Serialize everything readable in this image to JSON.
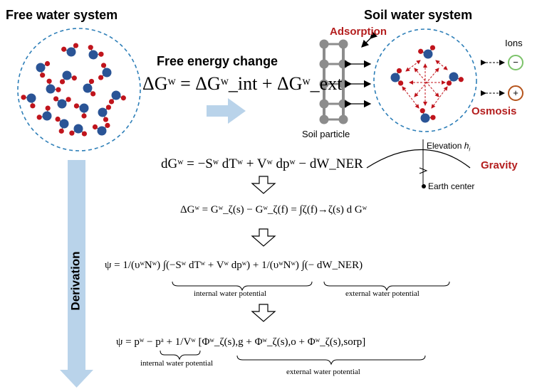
{
  "titles": {
    "free": "Free water system",
    "soil": "Soil water system",
    "free_energy": "Free energy change"
  },
  "labels": {
    "adsorption": "Adsorption",
    "ions": "Ions",
    "osmosis": "Osmosis",
    "soil_particle": "Soil particle",
    "elevation": "Elevation",
    "elevation_sub": "i",
    "elevation_symbol": "h",
    "gravity": "Gravity",
    "earth_center": "Earth center",
    "derivation": "Derivation",
    "ion_negative": "−",
    "ion_positive": "+"
  },
  "equations": {
    "delta_g": "ΔGʷ = ΔGʷ_int + ΔGʷ_ext",
    "dg": "dGʷ = −Sʷ dTʷ + Vʷ dpʷ − dW_NER",
    "integral": "ΔGʷ = Gʷ_ζ(s) − Gʷ_ζ(f) = ∫ζ(f)→ζ(s) d Gʷ",
    "psi_1": "ψ = 1/(υʷNʷ) ∫(−Sʷ dTʷ + Vʷ dpʷ) + 1/(υʷNʷ) ∫(− dW_NER)",
    "psi_2": "ψ = pʷ − pᵃ + 1/Vʷ [Φʷ_ζ(s),g + Φʷ_ζ(s),o + Φʷ_ζ(s),sorp]"
  },
  "brace_labels": {
    "internal_1": "internal water potential",
    "external_1": "external water potential",
    "internal_2": "internal water potential",
    "external_2": "external water potential"
  },
  "colors": {
    "circle_dash": "#2e7fb8",
    "oxygen": "#2a5496",
    "hydrogen": "#c0141c",
    "red_label": "#b41e1e",
    "blue_arrow": "#b9d3ea",
    "particle": "#8c8c8c",
    "ion_neg": "#7cc36a",
    "ion_pos": "#b5541c"
  }
}
